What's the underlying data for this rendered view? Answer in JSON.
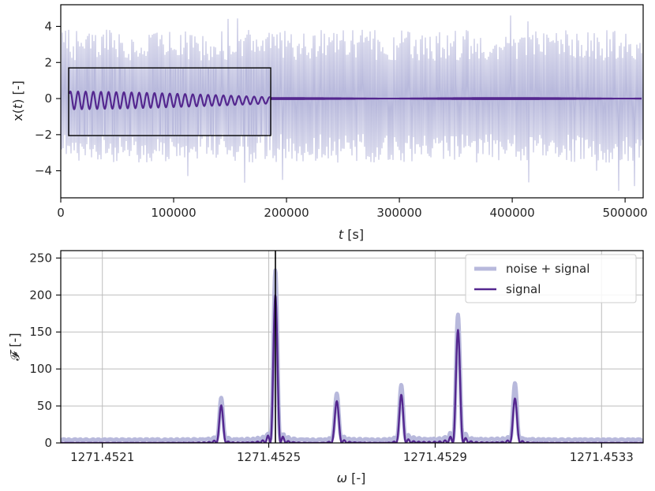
{
  "colors": {
    "noise": "#b8b9dc",
    "signal": "#54278f",
    "axis": "#000000",
    "grid": "#bdbdbd"
  },
  "chart_data": [
    {
      "type": "line",
      "xlabel_var": "t",
      "xlabel_unit": " [s]",
      "ylabel_pre": "x(",
      "ylabel_var": "t",
      "ylabel_post": ") [-]",
      "xlim": [
        0,
        516000
      ],
      "ylim": [
        -5.5,
        5.2
      ],
      "x_ticks": [
        0,
        100000,
        200000,
        300000,
        400000,
        500000
      ],
      "x_tick_labels": [
        "0",
        "100000",
        "200000",
        "300000",
        "400000",
        "500000"
      ],
      "y_ticks": [
        4,
        2,
        0,
        -2,
        -4
      ],
      "y_tick_labels": [
        "4",
        "2",
        "0",
        "−2",
        "−4"
      ],
      "grid": false,
      "noise_band": {
        "typical_range": [
          -3.5,
          3.8
        ],
        "min": -5.1,
        "max": 4.6
      },
      "signal_amplitude_zoomed": 0.35,
      "signal_amplitude_full": 0.08,
      "inset": {
        "x_range": [
          7000,
          186000
        ],
        "y_range": [
          -2.05,
          1.7
        ]
      }
    },
    {
      "type": "line",
      "xlabel_var": "ω",
      "xlabel_unit": " [-]",
      "ylabel": "𝓕 [-]",
      "xlim": [
        1271.452,
        1271.4534
      ],
      "ylim": [
        0,
        260
      ],
      "x_ticks": [
        1271.4521,
        1271.4525,
        1271.4529,
        1271.4533
      ],
      "x_tick_labels": [
        "1271.4521",
        "1271.4525",
        "1271.4529",
        "1271.4533"
      ],
      "y_ticks": [
        0,
        50,
        100,
        150,
        200,
        250
      ],
      "y_tick_labels": [
        "0",
        "50",
        "100",
        "150",
        "200",
        "250"
      ],
      "grid": true,
      "vline_x": 1271.452516,
      "legend": {
        "placement": "top-right",
        "entries": [
          "noise + signal",
          "signal"
        ]
      },
      "series": [
        {
          "name": "noise + signal",
          "peaks": [
            {
              "x": 1271.452386,
              "y": 52
            },
            {
              "x": 1271.452516,
              "y": 230
            },
            {
              "x": 1271.452663,
              "y": 67
            },
            {
              "x": 1271.452818,
              "y": 70
            },
            {
              "x": 1271.452955,
              "y": 176
            },
            {
              "x": 1271.453092,
              "y": 77
            }
          ]
        },
        {
          "name": "signal",
          "peaks": [
            {
              "x": 1271.452386,
              "y": 44
            },
            {
              "x": 1271.452516,
              "y": 198
            },
            {
              "x": 1271.452663,
              "y": 58
            },
            {
              "x": 1271.452818,
              "y": 59
            },
            {
              "x": 1271.452955,
              "y": 156
            },
            {
              "x": 1271.453092,
              "y": 58
            }
          ]
        }
      ]
    }
  ]
}
